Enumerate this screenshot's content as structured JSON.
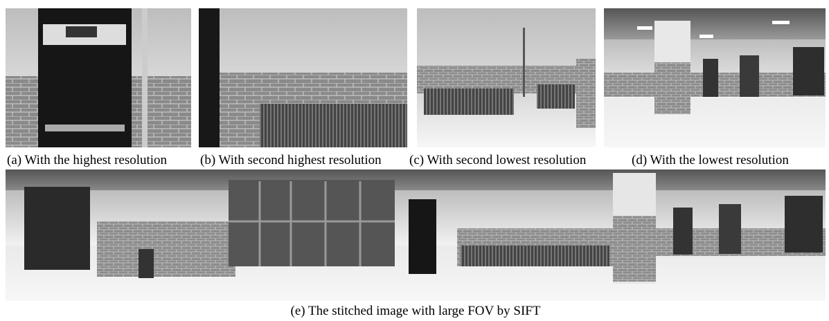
{
  "figure": {
    "panels": [
      {
        "caption": "(a) With the highest resolution"
      },
      {
        "caption": "(b) With second highest resolution"
      },
      {
        "caption": "(c) With second lowest resolution"
      },
      {
        "caption": "(d) With the lowest resolution"
      }
    ],
    "stitched": {
      "caption": "(e) The stitched image with large FOV by SIFT"
    }
  }
}
